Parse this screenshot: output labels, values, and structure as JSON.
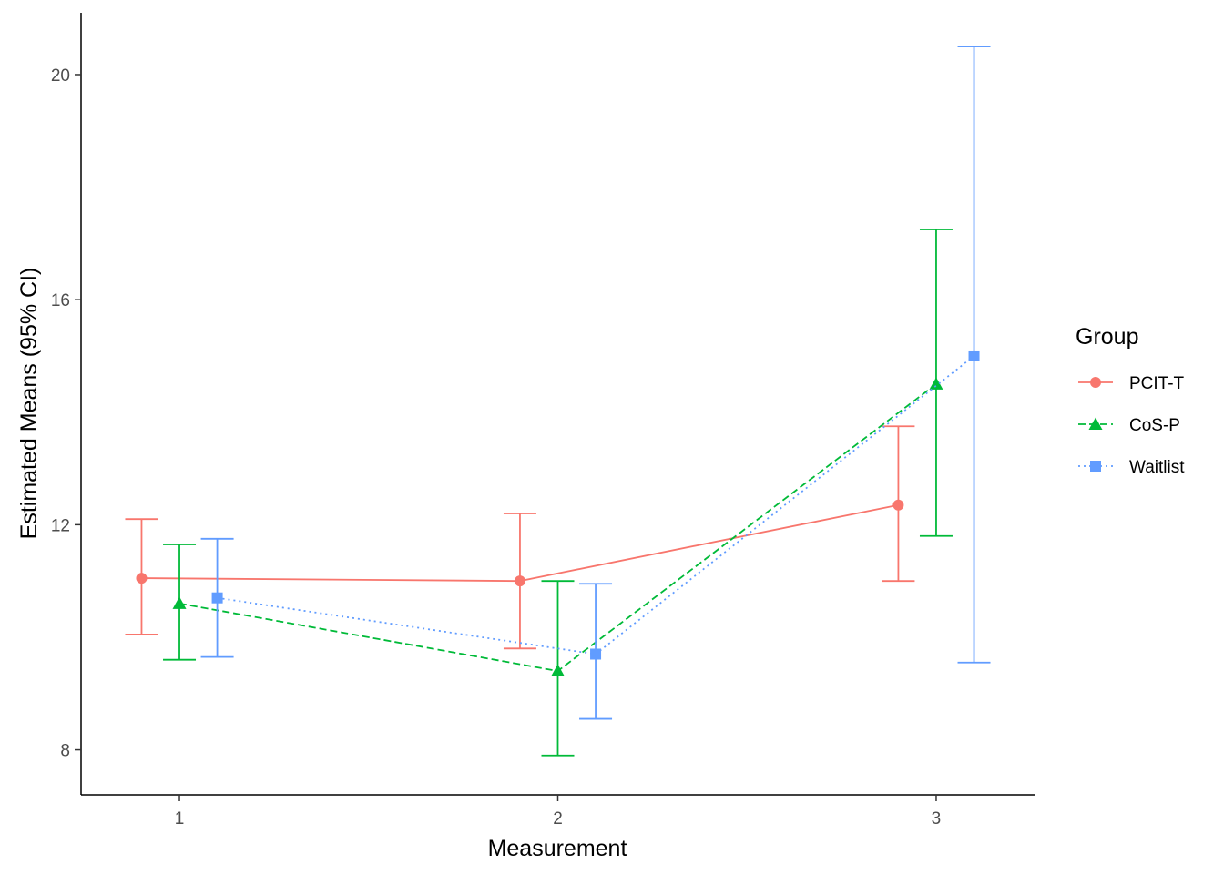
{
  "chart_data": {
    "type": "line",
    "xlabel": "Measurement",
    "ylabel": "Estimated Means (95% CI)",
    "x": [
      1,
      2,
      3
    ],
    "xlim": [
      0.74,
      3.26
    ],
    "ylim": [
      7.2,
      21.1
    ],
    "yticks": [
      8,
      12,
      16,
      20
    ],
    "grid": false,
    "legend": {
      "title": "Group",
      "position": "right"
    },
    "series": [
      {
        "name": "PCIT-T",
        "color": "#F8766D",
        "marker": "circle",
        "linestyle": "solid",
        "dodge": -0.1,
        "values": [
          11.05,
          11.0,
          12.35
        ],
        "lower": [
          10.05,
          9.8,
          11.0
        ],
        "upper": [
          12.1,
          12.2,
          13.75
        ]
      },
      {
        "name": "CoS-P",
        "color": "#00BA38",
        "marker": "triangle",
        "linestyle": "dashed",
        "dodge": 0.0,
        "values": [
          10.6,
          9.4,
          14.5
        ],
        "lower": [
          9.6,
          7.9,
          11.8
        ],
        "upper": [
          11.65,
          11.0,
          17.25
        ]
      },
      {
        "name": "Waitlist",
        "color": "#619CFF",
        "marker": "square",
        "linestyle": "dotted",
        "dodge": 0.1,
        "values": [
          10.7,
          9.7,
          15.0
        ],
        "lower": [
          9.65,
          8.55,
          9.55
        ],
        "upper": [
          11.75,
          10.95,
          20.5
        ]
      }
    ]
  }
}
